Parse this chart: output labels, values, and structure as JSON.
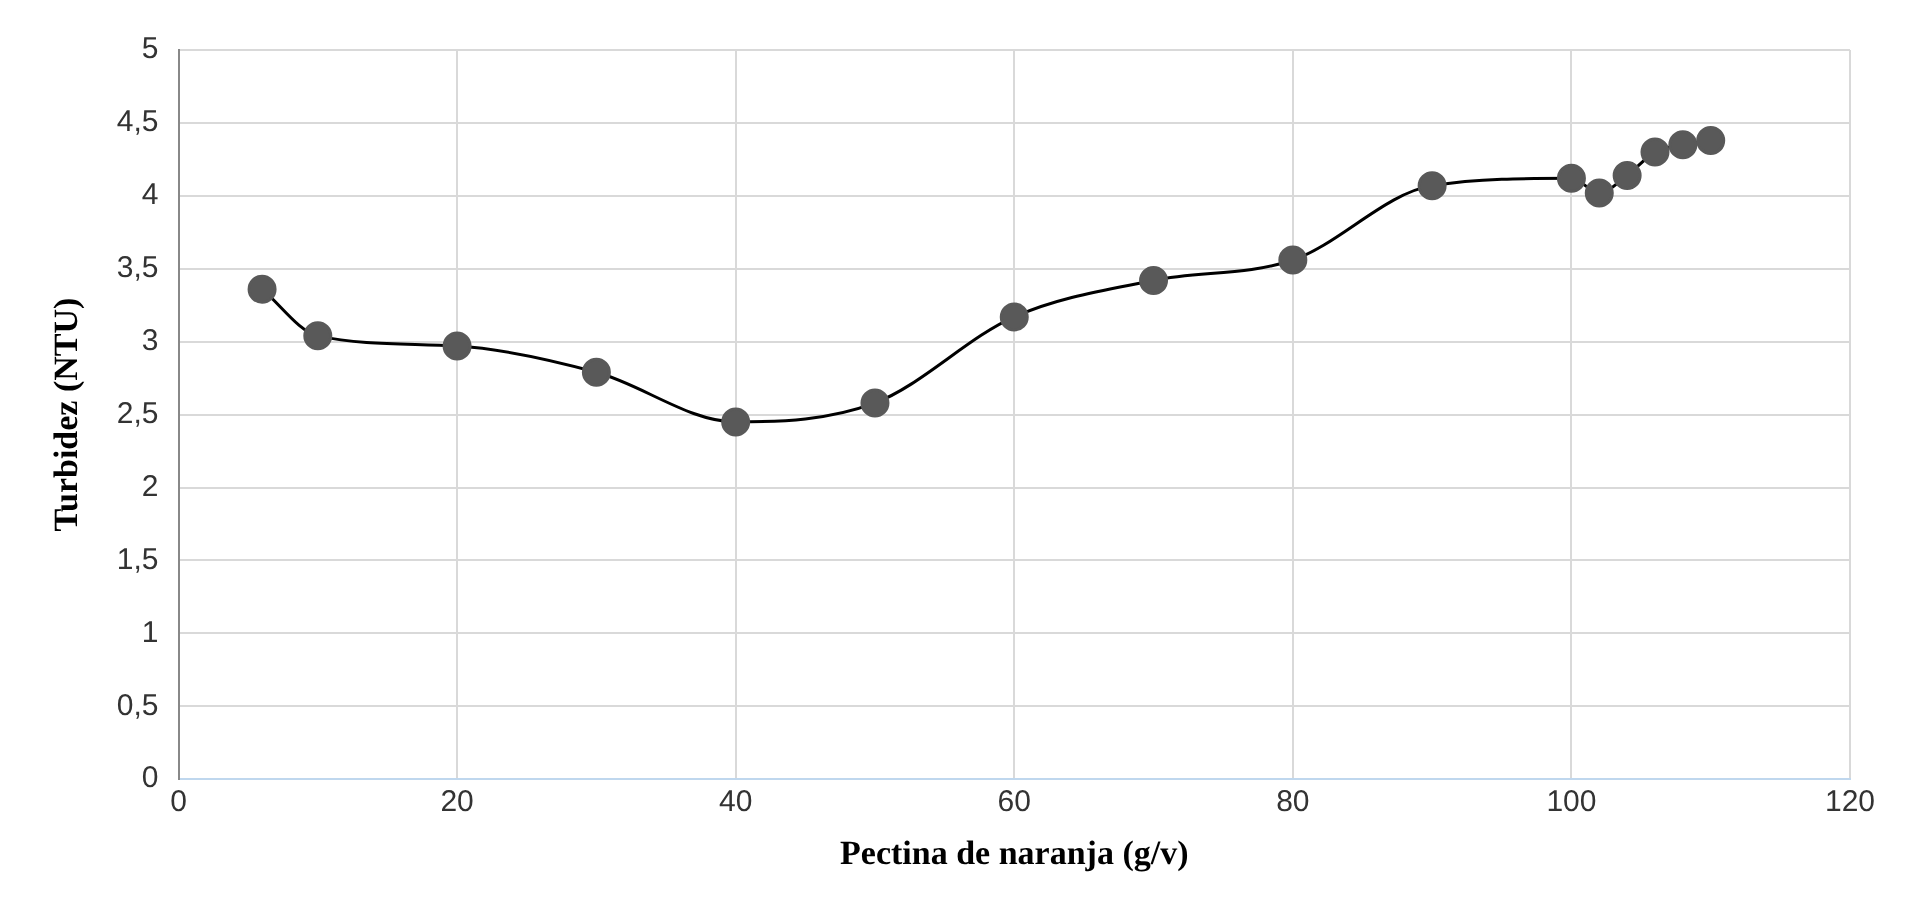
{
  "chart_data": {
    "type": "line",
    "xlabel": "Pectina de naranja (g/v)",
    "ylabel": "Turbidez (NTU)",
    "x": [
      6,
      10,
      20,
      30,
      40,
      50,
      60,
      70,
      80,
      90,
      100,
      102,
      104,
      106,
      108,
      110
    ],
    "series": [
      {
        "color": "#000000",
        "values": [
          3.36,
          3.04,
          2.97,
          2.79,
          2.45,
          2.58,
          3.17,
          3.42,
          3.56,
          4.07,
          4.12,
          4.02,
          4.14,
          4.3,
          4.35,
          4.38
        ]
      }
    ],
    "xlim": [
      0,
      120
    ],
    "xticks": [
      0,
      20,
      40,
      60,
      80,
      100,
      120
    ],
    "ylim": [
      0,
      5
    ],
    "yticks": [
      0,
      {
        "value": 0.5,
        "label": "0,5"
      },
      1,
      {
        "value": 1.5,
        "label": "1,5"
      },
      2,
      {
        "value": 2.5,
        "label": "2,5"
      },
      3,
      {
        "value": 3.5,
        "label": "3,5"
      },
      4,
      {
        "value": 4.5,
        "label": "4,5"
      },
      5
    ],
    "grid": true,
    "legend": false,
    "marker": "circle",
    "line_style": "solid"
  }
}
